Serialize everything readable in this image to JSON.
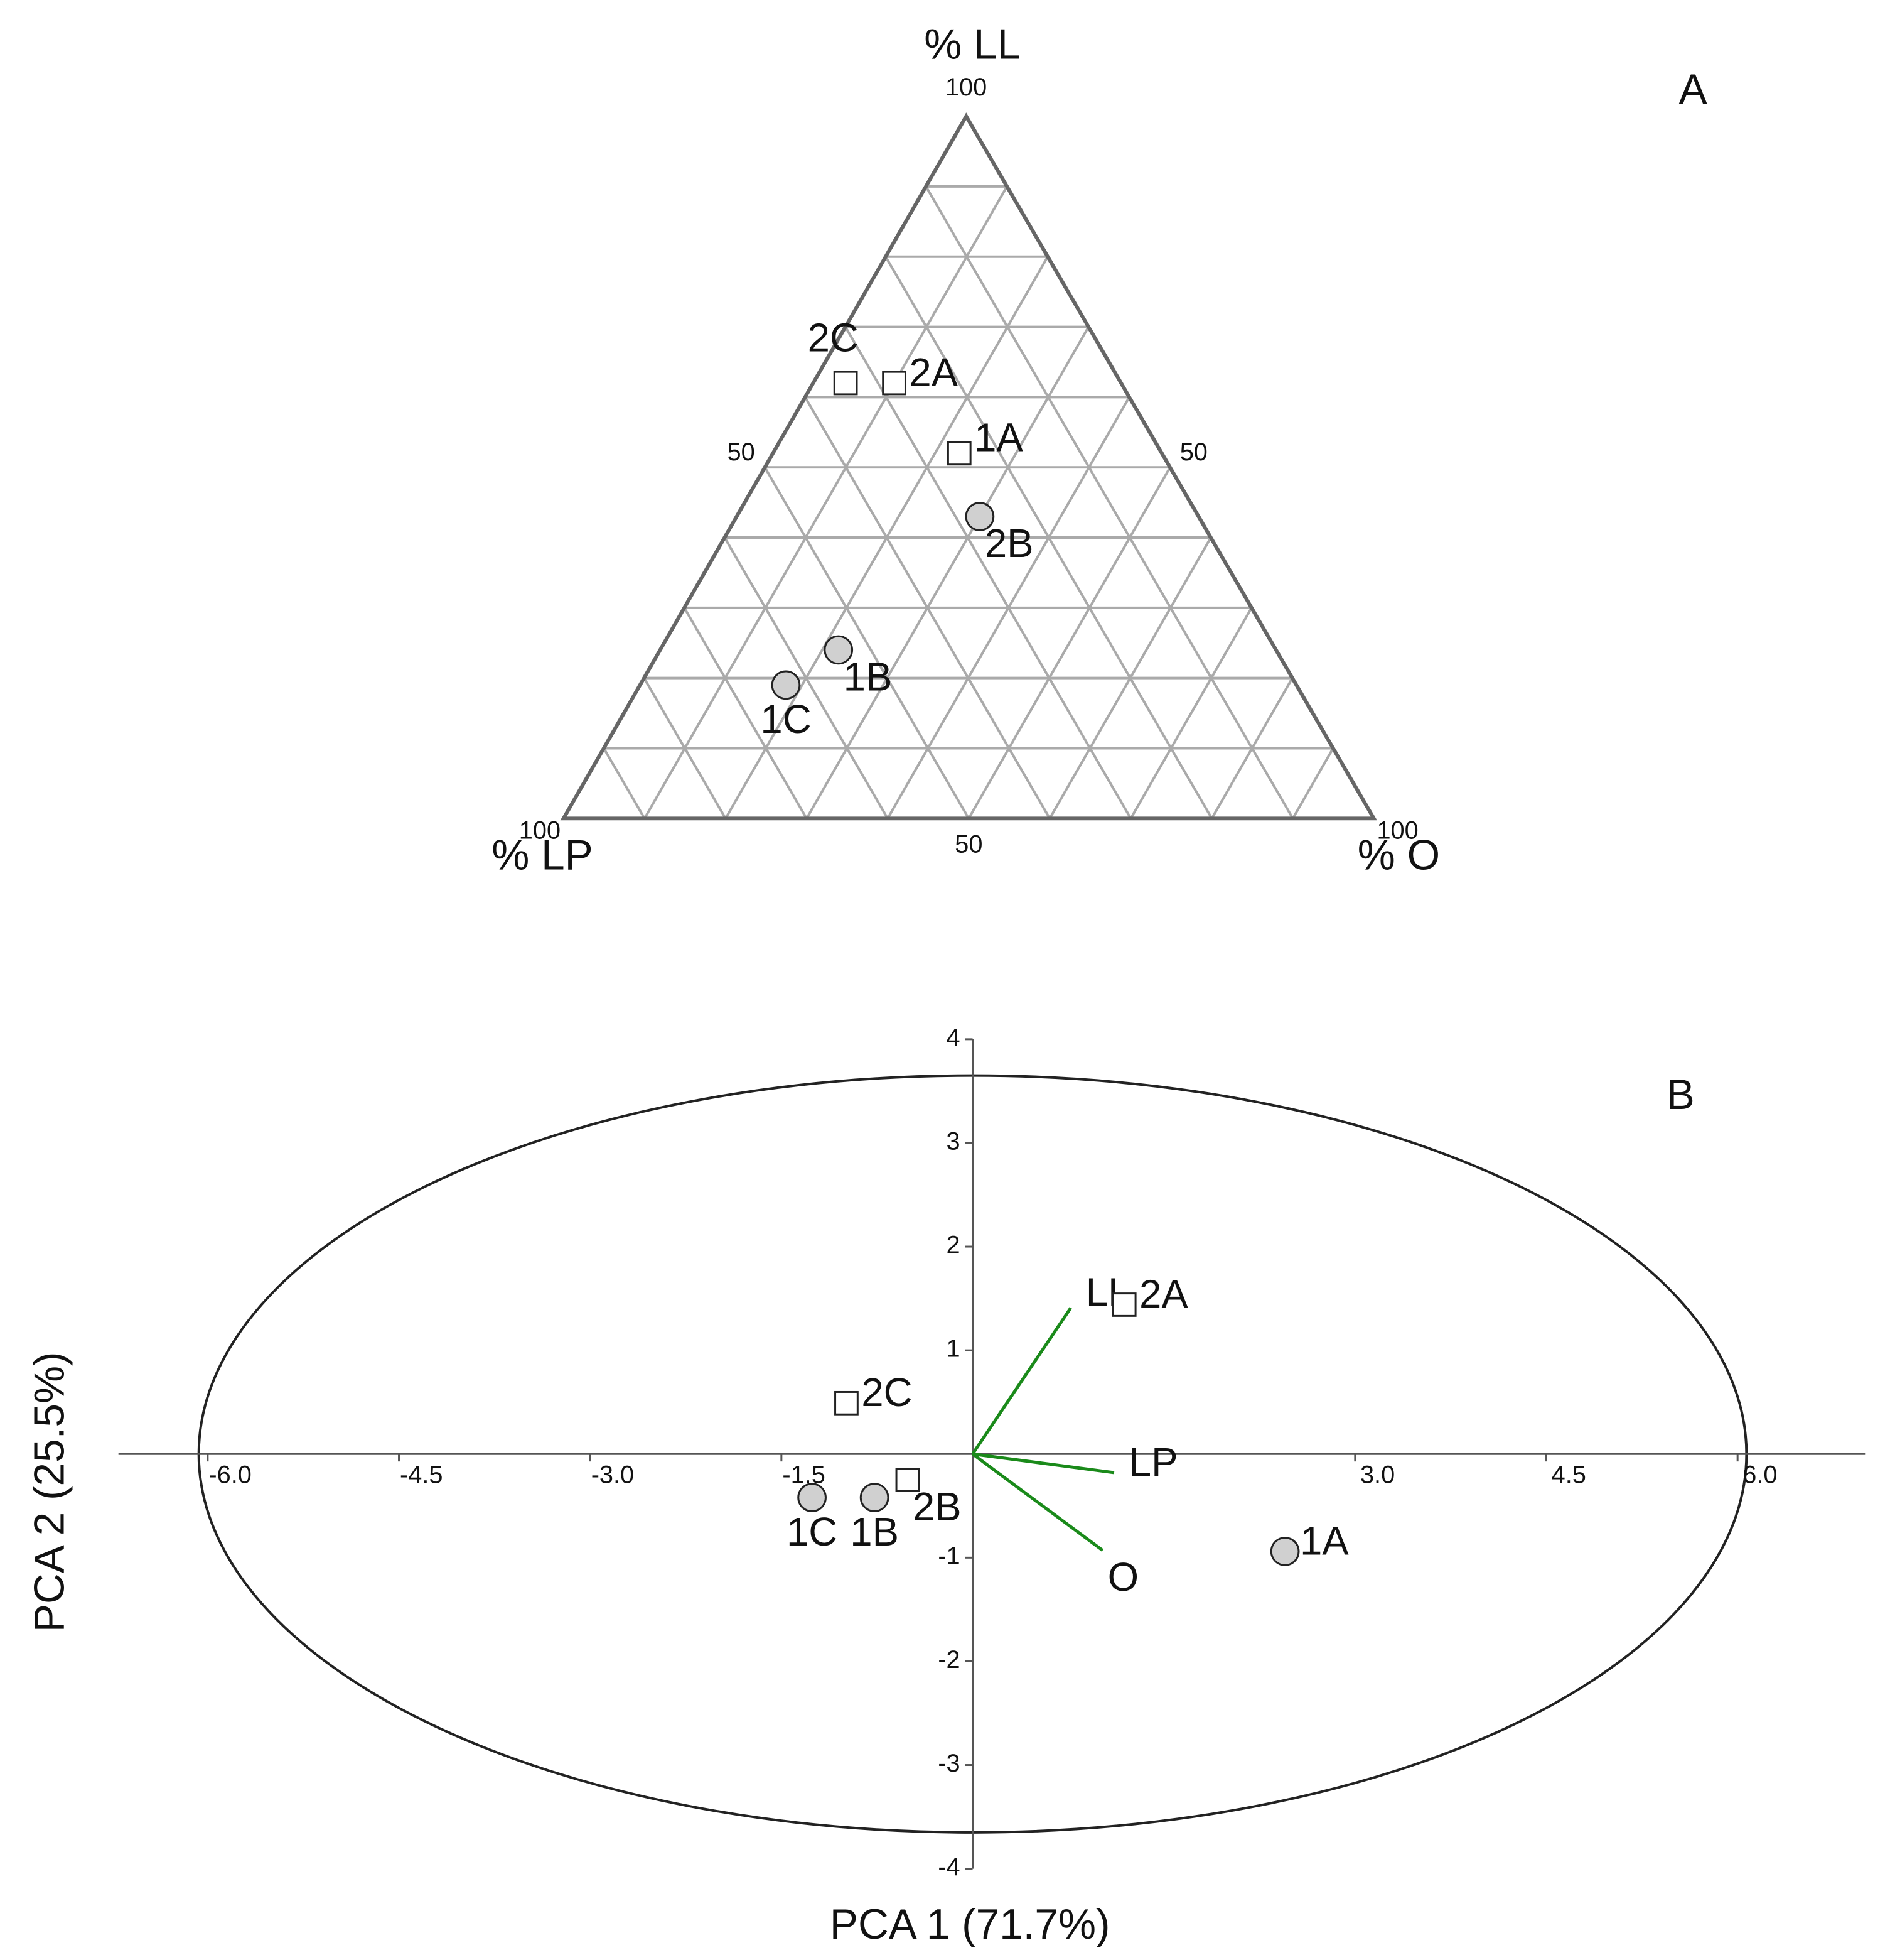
{
  "chart_data": [
    {
      "type": "ternary",
      "panel": "A",
      "axes": {
        "top": "% LL",
        "left": "% LP",
        "right": "% O"
      },
      "ll_ticks": [
        50,
        100
      ],
      "lp_ticks": [
        50,
        100
      ],
      "o_ticks": [
        50,
        100
      ],
      "grid_step": 10,
      "points": [
        {
          "label": "2C",
          "LL": 62,
          "LP": 34,
          "O": 4,
          "marker": "square",
          "color": "#ffffff",
          "label_side": "above"
        },
        {
          "label": "2A",
          "LL": 62,
          "LP": 28,
          "O": 10,
          "marker": "square",
          "color": "#ffffff",
          "label_side": "right"
        },
        {
          "label": "1A",
          "LL": 52,
          "LP": 25,
          "O": 23,
          "marker": "square",
          "color": "#ffffff",
          "label_side": "above-right"
        },
        {
          "label": "2B",
          "LL": 43,
          "LP": 27,
          "O": 30,
          "marker": "circle",
          "color": "#d0d0d0",
          "label_side": "below-right"
        },
        {
          "label": "1B",
          "LL": 24,
          "LP": 54,
          "O": 22,
          "marker": "circle",
          "color": "#d0d0d0",
          "label_side": "below-right"
        },
        {
          "label": "1C",
          "LL": 19,
          "LP": 63,
          "O": 18,
          "marker": "circle",
          "color": "#d0d0d0",
          "label_side": "below"
        }
      ]
    },
    {
      "type": "biplot",
      "panel": "B",
      "x_label": "PCA 1 (71.7%)",
      "y_label": "PCA 2 (25.5%)",
      "xlim": [
        -6.7,
        7.0
      ],
      "ylim": [
        -4,
        4
      ],
      "xticks": [
        {
          "value": -6,
          "label": "-6.0"
        },
        -4.5,
        {
          "value": -3,
          "label": "-3.0"
        },
        -1.5,
        {
          "value": 3,
          "label": "3.0"
        },
        4.5,
        {
          "value": 6,
          "label": "6.0"
        }
      ],
      "yticks": [
        -4,
        -3,
        -2,
        -1,
        1,
        2,
        3,
        4
      ],
      "ellipse": {
        "x_radius": 6.07,
        "y_radius": 3.65
      },
      "points": [
        {
          "label": "2A",
          "x": 1.19,
          "y": 1.44,
          "marker": "square",
          "color": "#ffffff",
          "label_side": "right"
        },
        {
          "label": "2C",
          "x": -0.99,
          "y": 0.49,
          "marker": "square",
          "color": "#ffffff",
          "label_side": "right"
        },
        {
          "label": "2B",
          "x": -0.51,
          "y": -0.25,
          "marker": "square",
          "color": "#ffffff",
          "label_side": "below-right"
        },
        {
          "label": "1B",
          "x": -0.77,
          "y": -0.42,
          "marker": "circle",
          "color": "#d0d0d0",
          "label_side": "below"
        },
        {
          "label": "1C",
          "x": -1.26,
          "y": -0.42,
          "marker": "circle",
          "color": "#d0d0d0",
          "label_side": "below"
        },
        {
          "label": "1A",
          "x": 2.45,
          "y": -0.94,
          "marker": "circle",
          "color": "#d0d0d0",
          "label_side": "right"
        }
      ],
      "loadings_color": "#1a8a1a",
      "loadings": [
        {
          "label": "LL",
          "x": 0.77,
          "y": 1.41,
          "label_side": "above-right"
        },
        {
          "label": "LP",
          "x": 1.11,
          "y": -0.18,
          "label_side": "right"
        },
        {
          "label": "O",
          "x": 1.02,
          "y": -0.93,
          "label_side": "below-right"
        }
      ]
    }
  ]
}
